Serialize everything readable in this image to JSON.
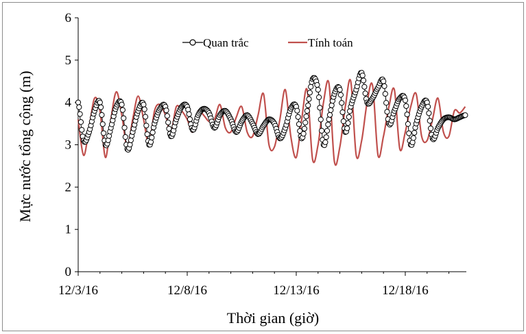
{
  "chart_data": {
    "type": "line",
    "title": "",
    "xlabel": "Thời gian (giờ)",
    "ylabel": "Mực nước tổng cộng (m)",
    "ylim": [
      0,
      6
    ],
    "y_ticks": [
      "0",
      "1",
      "2",
      "3",
      "4",
      "5",
      "6"
    ],
    "x_ticks": [
      "12/3/16",
      "12/8/16",
      "12/13/16",
      "12/18/16"
    ],
    "xlim_days": [
      0,
      17.8
    ],
    "x_tick_days": [
      0,
      5,
      10,
      15
    ],
    "legend_position": "top-center",
    "colors": {
      "observed": "#000000",
      "computed": "#c0504d"
    },
    "series": [
      {
        "name": "Quan trắc",
        "marker": "open-circle",
        "x_days": [
          0,
          0.25,
          0.5,
          0.75,
          1.0,
          1.25,
          1.5,
          1.75,
          2.0,
          2.25,
          2.5,
          2.75,
          3.0,
          3.25,
          3.5,
          3.75,
          4.0,
          4.25,
          4.5,
          4.75,
          5.0,
          5.25,
          5.5,
          5.75,
          6.0,
          6.25,
          6.5,
          6.75,
          7.0,
          7.25,
          7.5,
          7.75,
          8.0,
          8.25,
          8.5,
          8.75,
          9.0,
          9.25,
          9.5,
          9.75,
          10.0,
          10.25,
          10.5,
          10.75,
          11.0,
          11.25,
          11.5,
          11.75,
          12.0,
          12.25,
          12.5,
          12.75,
          13.0,
          13.25,
          13.5,
          13.75,
          14.0,
          14.25,
          14.5,
          14.75,
          15.0,
          15.25,
          15.5,
          15.75,
          16.0,
          16.25,
          16.5,
          16.75,
          17.0,
          17.25,
          17.5,
          17.75
        ],
        "values": [
          4.0,
          3.1,
          3.3,
          3.8,
          4.0,
          3.0,
          3.4,
          3.9,
          3.95,
          2.9,
          3.3,
          3.8,
          3.95,
          3.0,
          3.5,
          3.85,
          3.9,
          3.2,
          3.6,
          3.9,
          3.9,
          3.35,
          3.7,
          3.85,
          3.75,
          3.4,
          3.7,
          3.8,
          3.6,
          3.3,
          3.55,
          3.7,
          3.5,
          3.25,
          3.45,
          3.6,
          3.5,
          3.15,
          3.4,
          3.85,
          3.9,
          3.15,
          3.8,
          4.55,
          4.3,
          3.0,
          3.6,
          4.2,
          4.3,
          3.3,
          3.9,
          4.3,
          4.7,
          4.0,
          4.1,
          4.35,
          4.5,
          3.5,
          3.8,
          4.1,
          4.05,
          3.0,
          3.5,
          3.9,
          4.0,
          3.15,
          3.4,
          3.6,
          3.65,
          3.6,
          3.65,
          3.7
        ]
      },
      {
        "name": "Tính toán",
        "x_days": [
          0,
          0.25,
          0.5,
          0.75,
          1.0,
          1.25,
          1.5,
          1.75,
          2.0,
          2.25,
          2.5,
          2.75,
          3.0,
          3.25,
          3.5,
          3.75,
          4.0,
          4.25,
          4.5,
          4.75,
          5.0,
          5.25,
          5.5,
          5.75,
          6.0,
          6.25,
          6.5,
          6.75,
          7.0,
          7.25,
          7.5,
          7.75,
          8.0,
          8.25,
          8.5,
          8.75,
          9.0,
          9.25,
          9.5,
          9.75,
          10.0,
          10.25,
          10.5,
          10.75,
          11.0,
          11.25,
          11.5,
          11.75,
          12.0,
          12.25,
          12.5,
          12.75,
          13.0,
          13.25,
          13.5,
          13.75,
          14.0,
          14.25,
          14.5,
          14.75,
          15.0,
          15.25,
          15.5,
          15.75,
          16.0,
          16.25,
          16.5,
          16.75,
          17.0,
          17.25,
          17.5,
          17.75
        ],
        "values": [
          3.6,
          2.75,
          3.4,
          4.1,
          3.8,
          2.7,
          3.6,
          4.25,
          3.7,
          2.95,
          3.6,
          4.15,
          3.6,
          3.0,
          3.8,
          3.95,
          3.7,
          3.3,
          3.9,
          3.8,
          3.6,
          3.3,
          3.8,
          3.7,
          3.55,
          3.6,
          3.95,
          3.4,
          3.3,
          3.65,
          3.9,
          3.3,
          3.2,
          3.7,
          4.2,
          3.0,
          2.95,
          3.6,
          4.3,
          3.2,
          2.7,
          3.6,
          4.3,
          2.65,
          3.0,
          4.0,
          4.45,
          2.6,
          2.95,
          3.9,
          4.5,
          2.75,
          3.1,
          4.0,
          4.4,
          2.75,
          3.2,
          3.9,
          4.3,
          2.9,
          3.3,
          3.9,
          4.2,
          3.2,
          3.1,
          3.6,
          4.1,
          3.3,
          3.2,
          3.8,
          3.75,
          3.9
        ]
      }
    ]
  }
}
